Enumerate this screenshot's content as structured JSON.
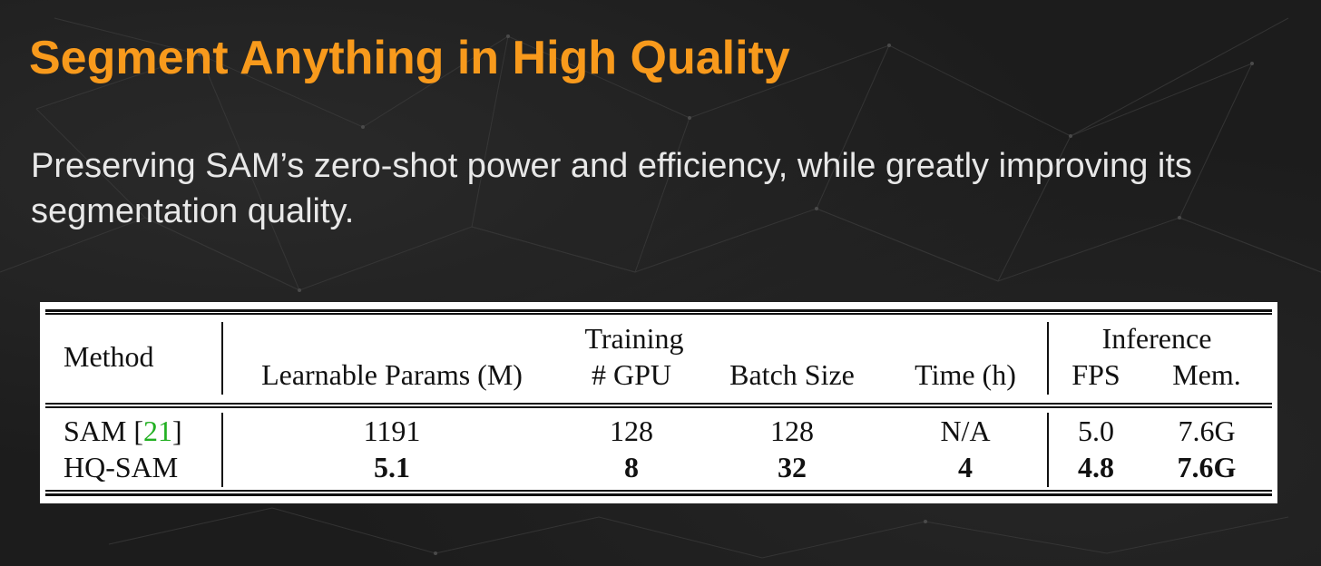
{
  "slide": {
    "title": "Segment Anything in High Quality",
    "subtitle": "Preserving SAM’s zero-shot power and efficiency, while greatly improving its segmentation quality."
  },
  "table": {
    "group_headers": {
      "training": "Training",
      "inference": "Inference"
    },
    "columns": {
      "method": "Method",
      "params": "Learnable Params (M)",
      "gpu": "# GPU",
      "batch": "Batch Size",
      "time": "Time (h)",
      "fps": "FPS",
      "mem": "Mem."
    },
    "rows": [
      {
        "method": "SAM [",
        "method_ref": "21",
        "method_ref_close": "]",
        "params": "1191",
        "gpu": "128",
        "batch": "128",
        "time": "N/A",
        "fps": "5.0",
        "mem": "7.6G"
      },
      {
        "method": "HQ-SAM",
        "params": "5.1",
        "gpu": "8",
        "batch": "32",
        "time": "4",
        "fps": "4.8",
        "mem": "7.6G"
      }
    ]
  },
  "colors": {
    "title": "#f89a1c",
    "subtitle": "#e8e8e8",
    "reference_link": "#22b022",
    "background": "#1c1c1c"
  }
}
